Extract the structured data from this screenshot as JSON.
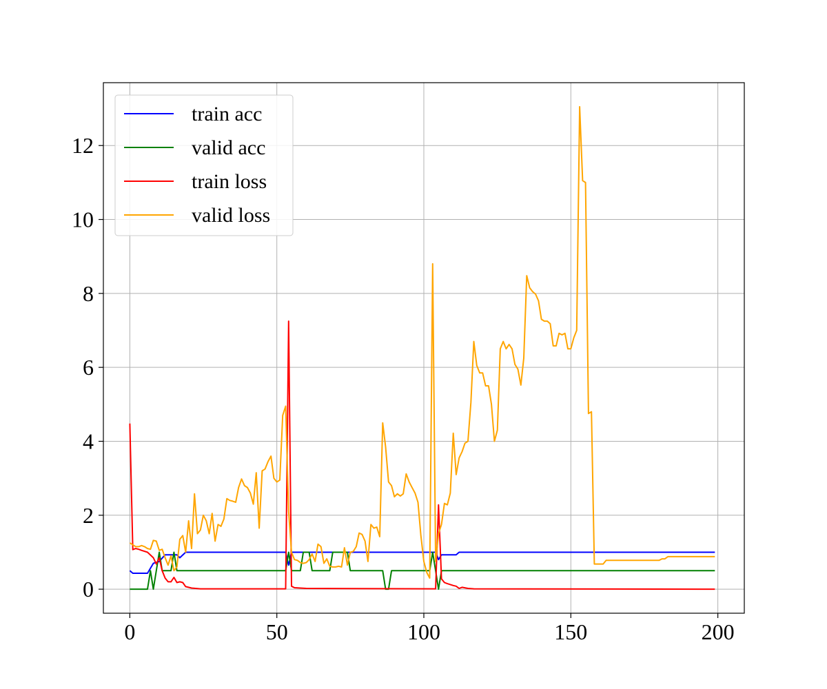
{
  "chart_data": {
    "type": "line",
    "title": "",
    "xlabel": "",
    "ylabel": "",
    "xlim": [
      -9,
      209
    ],
    "ylim": [
      -0.65,
      13.7
    ],
    "grid": true,
    "legend_position": "top-left",
    "x_ticks": [
      0,
      50,
      100,
      150,
      200
    ],
    "x_tick_labels": [
      "0",
      "50",
      "100",
      "150",
      "200"
    ],
    "y_ticks": [
      0,
      2,
      4,
      6,
      8,
      10,
      12
    ],
    "y_tick_labels": [
      "0",
      "2",
      "4",
      "6",
      "8",
      "10",
      "12"
    ],
    "series": [
      {
        "name": "train acc",
        "color": "#0000ff",
        "points": [
          [
            0,
            0.5
          ],
          [
            1,
            0.43
          ],
          [
            6,
            0.43
          ],
          [
            8,
            0.7
          ],
          [
            10,
            0.75
          ],
          [
            12,
            0.93
          ],
          [
            16,
            0.93
          ],
          [
            17,
            0.85
          ],
          [
            19,
            1.0
          ],
          [
            53,
            1.0
          ],
          [
            54,
            0.65
          ],
          [
            55,
            1.0
          ],
          [
            104,
            1.0
          ],
          [
            105,
            0.8
          ],
          [
            106,
            0.93
          ],
          [
            111,
            0.93
          ],
          [
            112,
            1.0
          ],
          [
            199,
            1.0
          ]
        ]
      },
      {
        "name": "valid acc",
        "color": "#008000",
        "points": [
          [
            0,
            0
          ],
          [
            6,
            0
          ],
          [
            7,
            0.5
          ],
          [
            8,
            0
          ],
          [
            10,
            1.0
          ],
          [
            11,
            0.5
          ],
          [
            14,
            0.5
          ],
          [
            15,
            1.0
          ],
          [
            16,
            0.5
          ],
          [
            53,
            0.5
          ],
          [
            54,
            1.0
          ],
          [
            55,
            0.5
          ],
          [
            58,
            0.5
          ],
          [
            59,
            1.0
          ],
          [
            61,
            1.0
          ],
          [
            62,
            0.5
          ],
          [
            68,
            0.5
          ],
          [
            69,
            1.0
          ],
          [
            74,
            1.0
          ],
          [
            75,
            0.5
          ],
          [
            86,
            0.5
          ],
          [
            87,
            0
          ],
          [
            88,
            0
          ],
          [
            89,
            0.5
          ],
          [
            102,
            0.5
          ],
          [
            103,
            1.0
          ],
          [
            104,
            0.5
          ],
          [
            105,
            0
          ],
          [
            106,
            0.5
          ],
          [
            199,
            0.5
          ]
        ]
      },
      {
        "name": "train loss",
        "color": "#ff0000",
        "points": [
          [
            0,
            4.48
          ],
          [
            1,
            1.07
          ],
          [
            2,
            1.1
          ],
          [
            3,
            1.08
          ],
          [
            4,
            1.05
          ],
          [
            6,
            1.0
          ],
          [
            8,
            0.85
          ],
          [
            9,
            0.68
          ],
          [
            10,
            0.85
          ],
          [
            11,
            0.5
          ],
          [
            12,
            0.3
          ],
          [
            13,
            0.2
          ],
          [
            14,
            0.2
          ],
          [
            15,
            0.32
          ],
          [
            16,
            0.18
          ],
          [
            17,
            0.2
          ],
          [
            18,
            0.18
          ],
          [
            19,
            0.07
          ],
          [
            21,
            0.03
          ],
          [
            24,
            0.01
          ],
          [
            53,
            0.01
          ],
          [
            54,
            7.25
          ],
          [
            55,
            0.08
          ],
          [
            56,
            0.04
          ],
          [
            60,
            0.02
          ],
          [
            104,
            0.01
          ],
          [
            105,
            2.28
          ],
          [
            106,
            0.28
          ],
          [
            107,
            0.18
          ],
          [
            108,
            0.15
          ],
          [
            110,
            0.1
          ],
          [
            111,
            0.08
          ],
          [
            112,
            0.02
          ],
          [
            113,
            0.05
          ],
          [
            115,
            0.02
          ],
          [
            117,
            0.01
          ],
          [
            199,
            0.0
          ]
        ]
      },
      {
        "name": "valid loss",
        "color": "#ffa500",
        "points": [
          [
            0,
            1.25
          ],
          [
            1,
            1.2
          ],
          [
            2,
            1.15
          ],
          [
            3,
            1.15
          ],
          [
            4,
            1.18
          ],
          [
            5,
            1.15
          ],
          [
            6,
            1.1
          ],
          [
            7,
            1.08
          ],
          [
            8,
            1.32
          ],
          [
            9,
            1.3
          ],
          [
            10,
            1.05
          ],
          [
            11,
            1.08
          ],
          [
            12,
            0.85
          ],
          [
            13,
            0.65
          ],
          [
            14,
            0.9
          ],
          [
            15,
            0.5
          ],
          [
            16,
            0.6
          ],
          [
            17,
            1.35
          ],
          [
            18,
            1.45
          ],
          [
            19,
            1.0
          ],
          [
            20,
            1.85
          ],
          [
            21,
            1.1
          ],
          [
            22,
            2.58
          ],
          [
            23,
            1.5
          ],
          [
            24,
            1.6
          ],
          [
            25,
            2.0
          ],
          [
            26,
            1.85
          ],
          [
            27,
            1.5
          ],
          [
            28,
            2.05
          ],
          [
            29,
            1.3
          ],
          [
            30,
            1.75
          ],
          [
            31,
            1.7
          ],
          [
            32,
            1.9
          ],
          [
            33,
            2.45
          ],
          [
            34,
            2.4
          ],
          [
            35,
            2.38
          ],
          [
            36,
            2.35
          ],
          [
            37,
            2.75
          ],
          [
            38,
            2.98
          ],
          [
            39,
            2.8
          ],
          [
            40,
            2.75
          ],
          [
            41,
            2.6
          ],
          [
            42,
            2.3
          ],
          [
            43,
            3.15
          ],
          [
            44,
            1.65
          ],
          [
            45,
            3.2
          ],
          [
            46,
            3.25
          ],
          [
            47,
            3.45
          ],
          [
            48,
            3.6
          ],
          [
            49,
            3.0
          ],
          [
            50,
            2.9
          ],
          [
            51,
            2.95
          ],
          [
            52,
            4.7
          ],
          [
            53,
            4.95
          ],
          [
            54,
            2.1
          ],
          [
            55,
            1.0
          ],
          [
            56,
            0.8
          ],
          [
            57,
            0.78
          ],
          [
            58,
            0.72
          ],
          [
            59,
            0.7
          ],
          [
            60,
            0.72
          ],
          [
            61,
            0.8
          ],
          [
            62,
            0.95
          ],
          [
            63,
            0.75
          ],
          [
            64,
            1.22
          ],
          [
            65,
            1.15
          ],
          [
            66,
            0.7
          ],
          [
            67,
            0.82
          ],
          [
            68,
            0.62
          ],
          [
            69,
            0.6
          ],
          [
            70,
            0.6
          ],
          [
            71,
            0.62
          ],
          [
            72,
            0.6
          ],
          [
            73,
            1.12
          ],
          [
            74,
            0.65
          ],
          [
            75,
            1.0
          ],
          [
            76,
            1.02
          ],
          [
            77,
            1.15
          ],
          [
            78,
            1.52
          ],
          [
            79,
            1.48
          ],
          [
            80,
            1.3
          ],
          [
            81,
            0.75
          ],
          [
            82,
            1.75
          ],
          [
            83,
            1.65
          ],
          [
            84,
            1.68
          ],
          [
            85,
            1.42
          ],
          [
            86,
            4.5
          ],
          [
            87,
            3.85
          ],
          [
            88,
            2.9
          ],
          [
            89,
            2.8
          ],
          [
            90,
            2.5
          ],
          [
            91,
            2.58
          ],
          [
            92,
            2.52
          ],
          [
            93,
            2.58
          ],
          [
            94,
            3.12
          ],
          [
            95,
            2.9
          ],
          [
            96,
            2.75
          ],
          [
            97,
            2.6
          ],
          [
            98,
            2.35
          ],
          [
            99,
            1.45
          ],
          [
            100,
            0.75
          ],
          [
            101,
            0.45
          ],
          [
            102,
            0.3
          ],
          [
            103,
            8.8
          ],
          [
            104,
            0.75
          ],
          [
            105,
            1.5
          ],
          [
            106,
            1.75
          ],
          [
            107,
            2.32
          ],
          [
            108,
            2.28
          ],
          [
            109,
            2.6
          ],
          [
            110,
            4.22
          ],
          [
            111,
            3.1
          ],
          [
            112,
            3.55
          ],
          [
            113,
            3.72
          ],
          [
            114,
            3.95
          ],
          [
            115,
            4.0
          ],
          [
            116,
            5.05
          ],
          [
            117,
            6.7
          ],
          [
            118,
            6.05
          ],
          [
            119,
            5.85
          ],
          [
            120,
            5.85
          ],
          [
            121,
            5.5
          ],
          [
            122,
            5.5
          ],
          [
            123,
            5.0
          ],
          [
            124,
            4.0
          ],
          [
            125,
            4.3
          ],
          [
            126,
            6.5
          ],
          [
            127,
            6.7
          ],
          [
            128,
            6.5
          ],
          [
            129,
            6.62
          ],
          [
            130,
            6.5
          ],
          [
            131,
            6.08
          ],
          [
            132,
            5.95
          ],
          [
            133,
            5.52
          ],
          [
            134,
            6.25
          ],
          [
            135,
            8.48
          ],
          [
            136,
            8.15
          ],
          [
            137,
            8.05
          ],
          [
            138,
            7.98
          ],
          [
            139,
            7.8
          ],
          [
            140,
            7.3
          ],
          [
            141,
            7.25
          ],
          [
            142,
            7.25
          ],
          [
            143,
            7.18
          ],
          [
            144,
            6.58
          ],
          [
            145,
            6.58
          ],
          [
            146,
            6.92
          ],
          [
            147,
            6.88
          ],
          [
            148,
            6.92
          ],
          [
            149,
            6.5
          ],
          [
            150,
            6.5
          ],
          [
            151,
            6.8
          ],
          [
            152,
            7.0
          ],
          [
            153,
            13.05
          ],
          [
            154,
            11.05
          ],
          [
            155,
            11.0
          ],
          [
            156,
            4.75
          ],
          [
            157,
            4.8
          ],
          [
            158,
            0.68
          ],
          [
            160,
            0.68
          ],
          [
            161,
            0.68
          ],
          [
            162,
            0.78
          ],
          [
            180,
            0.78
          ],
          [
            181,
            0.82
          ],
          [
            182,
            0.82
          ],
          [
            183,
            0.88
          ],
          [
            199,
            0.88
          ]
        ]
      }
    ]
  }
}
